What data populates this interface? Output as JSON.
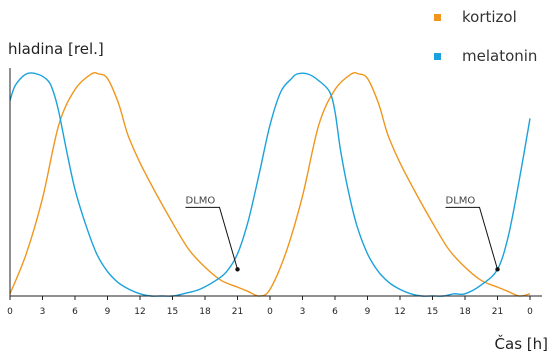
{
  "chart_data": {
    "type": "line",
    "ylabel": "hladina [rel.]",
    "xlabel": "Čas [h]",
    "x_tick_labels": [
      "0",
      "3",
      "6",
      "9",
      "12",
      "15",
      "18",
      "21",
      "0",
      "3",
      "6",
      "9",
      "12",
      "15",
      "18",
      "21",
      "0"
    ],
    "x_range": [
      0,
      48
    ],
    "y_range": [
      0,
      1
    ],
    "grid": false,
    "legend_position": "top-right",
    "series": [
      {
        "name": "kortizol",
        "color": "#f0961e",
        "x": [
          0,
          1.5,
          3,
          4.5,
          6,
          7.5,
          8.2,
          9,
          10,
          10.6,
          11,
          12,
          13.5,
          15,
          16.5,
          18,
          19.5,
          21,
          22,
          23,
          24,
          25.5,
          27,
          28.5,
          30,
          31.5,
          32.2,
          33,
          34,
          34.6,
          35,
          36,
          37.5,
          39,
          40.5,
          42,
          43.5,
          45,
          46,
          47,
          48
        ],
        "y": [
          0.01,
          0.19,
          0.44,
          0.77,
          0.93,
          1.0,
          1.0,
          0.98,
          0.87,
          0.77,
          0.71,
          0.6,
          0.46,
          0.33,
          0.21,
          0.13,
          0.07,
          0.04,
          0.02,
          0.0,
          0.03,
          0.2,
          0.45,
          0.77,
          0.93,
          1.0,
          1.0,
          0.98,
          0.87,
          0.77,
          0.71,
          0.6,
          0.46,
          0.33,
          0.21,
          0.13,
          0.07,
          0.04,
          0.02,
          0.0,
          0.01
        ]
      },
      {
        "name": "melatonin",
        "color": "#1ba2dc",
        "x": [
          0,
          0.5,
          1.5,
          2.5,
          3.5,
          4,
          4.5,
          5.2,
          6,
          7,
          8,
          9,
          10,
          11,
          12,
          13,
          14,
          15,
          16,
          17.5,
          19,
          20,
          21,
          22,
          23,
          24,
          25,
          26,
          26.5,
          27.5,
          28.5,
          29.5,
          30,
          30.5,
          31.2,
          32,
          33,
          34,
          35,
          36,
          37,
          38,
          39,
          40,
          41,
          42,
          43.5,
          45,
          46,
          47,
          48
        ],
        "y": [
          0.88,
          0.95,
          1.0,
          1.0,
          0.97,
          0.92,
          0.83,
          0.66,
          0.48,
          0.32,
          0.19,
          0.11,
          0.06,
          0.03,
          0.01,
          0.0,
          0.0,
          0.0,
          0.01,
          0.03,
          0.07,
          0.11,
          0.19,
          0.34,
          0.55,
          0.77,
          0.92,
          0.98,
          1.0,
          1.0,
          0.97,
          0.92,
          0.83,
          0.66,
          0.48,
          0.32,
          0.19,
          0.11,
          0.06,
          0.03,
          0.01,
          0.0,
          0.0,
          0.0,
          0.01,
          0.01,
          0.05,
          0.12,
          0.27,
          0.52,
          0.8
        ]
      }
    ],
    "annotations": [
      {
        "text": "DLMO",
        "x": 21,
        "y": 0.12
      },
      {
        "text": "DLMO",
        "x": 45,
        "y": 0.12
      }
    ]
  }
}
